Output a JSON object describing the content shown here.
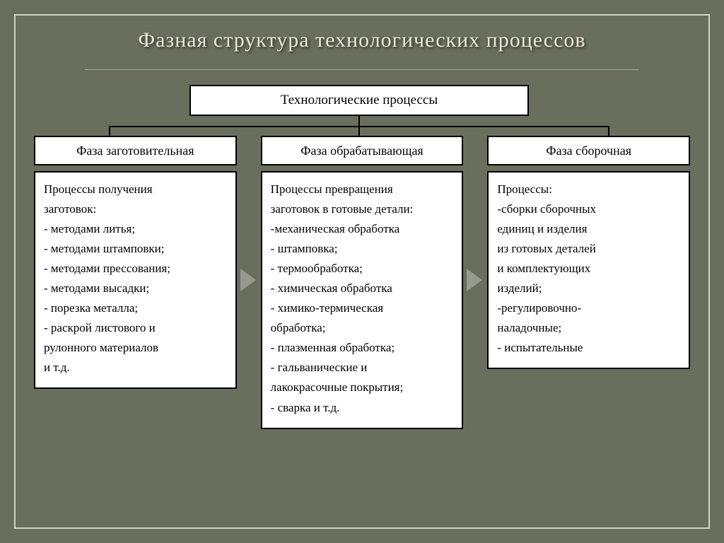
{
  "slide": {
    "title": "Фазная структура технологических процессов",
    "background_color": "#6a6e5c",
    "frame_border_color": "#d2d3cb",
    "title_color": "#e9e6d7",
    "accent_color": "#c7a25a",
    "box_bg": "#ffffff",
    "box_border": "#000000",
    "title_fontsize": 30,
    "body_fontsize": 17
  },
  "diagram": {
    "type": "tree",
    "root": {
      "label": "Технологические процессы"
    },
    "columns": [
      {
        "header": "Фаза заготовительная",
        "body": "Процессы получения\n заготовок:\n- методами литья;\n- методами  штамповки;\n- методами прессования;\n- методами высадки;\n- порезка металла;\n- раскрой листового и\n  рулонного материалов\n       и т.д."
      },
      {
        "header": "Фаза обрабатывающая",
        "body": "  Процессы превращения\nзаготовок в готовые детали:\n-механическая обработка\n- штамповка;\n- термообработка;\n- химическая обработка\n- химико-термическая\n        обработка;\n- плазменная обработка;\n- гальванические и\nлакокрасочные покрытия;\n- сварка и т.д."
      },
      {
        "header": "Фаза сборочная",
        "body": "        Процессы:\n-сборки сборочных\n единиц и изделия\nиз готовых деталей\nи комплектующих\nизделий;\n-регулировочно-\n   наладочные;\n- испытательные"
      }
    ]
  }
}
